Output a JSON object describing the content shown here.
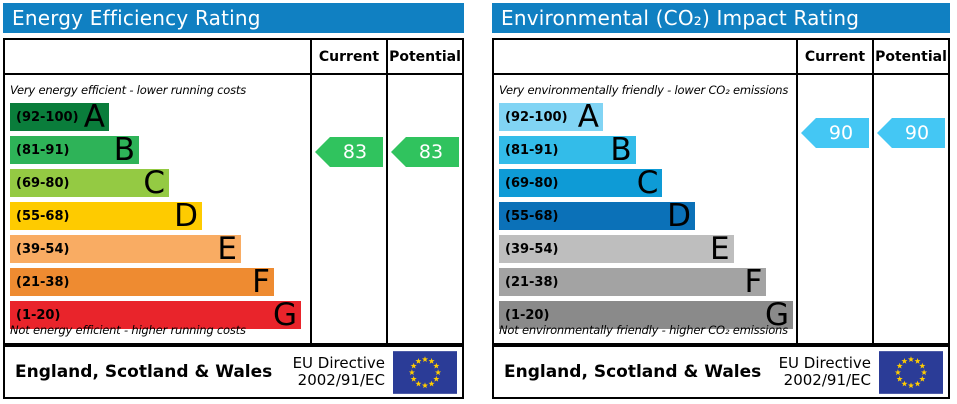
{
  "colors": {
    "header_blue": "#1080c2",
    "energy_arrow_green": "#30c35e",
    "co2_arrow_blue": "#44c7f4",
    "eu_flag_background": "#2b3c97",
    "eu_flag_star": "#ffcc00"
  },
  "chart_data": [
    {
      "type": "rating_scale",
      "title": "Energy Efficiency Rating",
      "bands": [
        {
          "letter": "A",
          "range": "92-100"
        },
        {
          "letter": "B",
          "range": "81-91"
        },
        {
          "letter": "C",
          "range": "69-80"
        },
        {
          "letter": "D",
          "range": "55-68"
        },
        {
          "letter": "E",
          "range": "39-54"
        },
        {
          "letter": "F",
          "range": "21-38"
        },
        {
          "letter": "G",
          "range": "1-20"
        }
      ],
      "current": 83,
      "potential": 83
    },
    {
      "type": "rating_scale",
      "title": "Environmental (CO₂) Impact Rating",
      "bands": [
        {
          "letter": "A",
          "range": "92-100"
        },
        {
          "letter": "B",
          "range": "81-91"
        },
        {
          "letter": "C",
          "range": "69-80"
        },
        {
          "letter": "D",
          "range": "55-68"
        },
        {
          "letter": "E",
          "range": "39-54"
        },
        {
          "letter": "F",
          "range": "21-38"
        },
        {
          "letter": "G",
          "range": "1-20"
        }
      ],
      "current": 90,
      "potential": 90
    }
  ],
  "panels": [
    {
      "title": "Energy Efficiency Rating",
      "header_style": "background:#1080c2",
      "columns": {
        "current": "Current",
        "potential": "Potential"
      },
      "top_note": "Very energy efficient - lower running costs",
      "bottom_note": "Not energy efficient - higher running costs",
      "bands": [
        {
          "range": "(92-100)",
          "letter": "A",
          "color": "#0a7d3b",
          "style": "width:33%;background:#0a7d3b"
        },
        {
          "range": "(81-91)",
          "letter": "B",
          "color": "#2eb358",
          "style": "width:43%;background:#2eb358"
        },
        {
          "range": "(69-80)",
          "letter": "C",
          "color": "#94ca43",
          "style": "width:53%;background:#94ca43"
        },
        {
          "range": "(55-68)",
          "letter": "D",
          "color": "#fecb00",
          "style": "width:64%;background:#fecb00"
        },
        {
          "range": "(39-54)",
          "letter": "E",
          "color": "#f9ac63",
          "style": "width:77%;background:#f9ac63"
        },
        {
          "range": "(21-38)",
          "letter": "F",
          "color": "#ee8b31",
          "style": "width:88%;background:#ee8b31"
        },
        {
          "range": "(1-20)",
          "letter": "G",
          "color": "#e9242b",
          "style": "width:97%;background:#e9242b"
        }
      ],
      "current": {
        "value": "83",
        "style": "top:62px;background:#30c35e"
      },
      "potential": {
        "value": "83",
        "style": "top:62px;background:#30c35e"
      },
      "footer": {
        "region": "England, Scotland & Wales",
        "directive_line1": "EU Directive",
        "directive_line2": "2002/91/EC"
      }
    },
    {
      "title": "Environmental (CO₂) Impact Rating",
      "header_style": "background:#1080c2",
      "columns": {
        "current": "Current",
        "potential": "Potential"
      },
      "top_note": "Very environmentally friendly - lower CO₂ emissions",
      "bottom_note": "Not environmentally friendly - higher CO₂ emissions",
      "bands": [
        {
          "range": "(92-100)",
          "letter": "A",
          "color": "#81d4f4",
          "style": "width:35%;background:#81d4f4"
        },
        {
          "range": "(81-91)",
          "letter": "B",
          "color": "#33bce9",
          "style": "width:46%;background:#33bce9"
        },
        {
          "range": "(69-80)",
          "letter": "C",
          "color": "#0e9bd6",
          "style": "width:55%;background:#0e9bd6"
        },
        {
          "range": "(55-68)",
          "letter": "D",
          "color": "#0b71b8",
          "style": "width:66%;background:#0b71b8"
        },
        {
          "range": "(39-54)",
          "letter": "E",
          "color": "#bebebe",
          "style": "width:79%;background:#bebebe"
        },
        {
          "range": "(21-38)",
          "letter": "F",
          "color": "#a3a3a3",
          "style": "width:90%;background:#a3a3a3"
        },
        {
          "range": "(1-20)",
          "letter": "G",
          "color": "#8a8a8a",
          "style": "width:99%;background:#8a8a8a"
        }
      ],
      "current": {
        "value": "90",
        "style": "top:43px;background:#44c7f4"
      },
      "potential": {
        "value": "90",
        "style": "top:43px;background:#44c7f4"
      },
      "footer": {
        "region": "England, Scotland & Wales",
        "directive_line1": "EU Directive",
        "directive_line2": "2002/91/EC"
      }
    }
  ]
}
